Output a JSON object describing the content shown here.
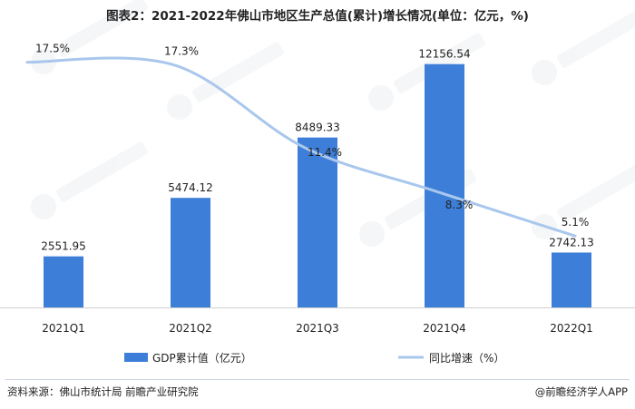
{
  "header": {
    "title": "图表2：2021-2022年佛山市地区生产总值(累计)增长情况(单位：亿元，%)"
  },
  "chart_data": {
    "type": "bar+line",
    "categories": [
      "2021Q1",
      "2021Q2",
      "2021Q3",
      "2021Q4",
      "2022Q1"
    ],
    "series": [
      {
        "name": "GDP累计值（亿元）",
        "type": "bar",
        "axis": "left",
        "values": [
          2551.95,
          5474.12,
          8489.33,
          12156.54,
          2742.13
        ],
        "labels": [
          "2551.95",
          "5474.12",
          "8489.33",
          "12156.54",
          "2742.13"
        ],
        "color": "#3d7fd8"
      },
      {
        "name": "同比增速（%）",
        "type": "line",
        "axis": "right",
        "values": [
          17.5,
          17.3,
          11.4,
          8.3,
          5.1
        ],
        "labels": [
          "17.5%",
          "17.3%",
          "11.4%",
          "8.3%",
          "5.1%"
        ],
        "color": "#a9c7ec"
      }
    ],
    "ylim_left": [
      0,
      14000
    ],
    "ylim_right": [
      0,
      20
    ],
    "grid": false,
    "legend_position": "bottom"
  },
  "footer": {
    "source": "资料来源：佛山市统计局 前瞻产业研究院",
    "brand": "@前瞻经济学人APP"
  }
}
